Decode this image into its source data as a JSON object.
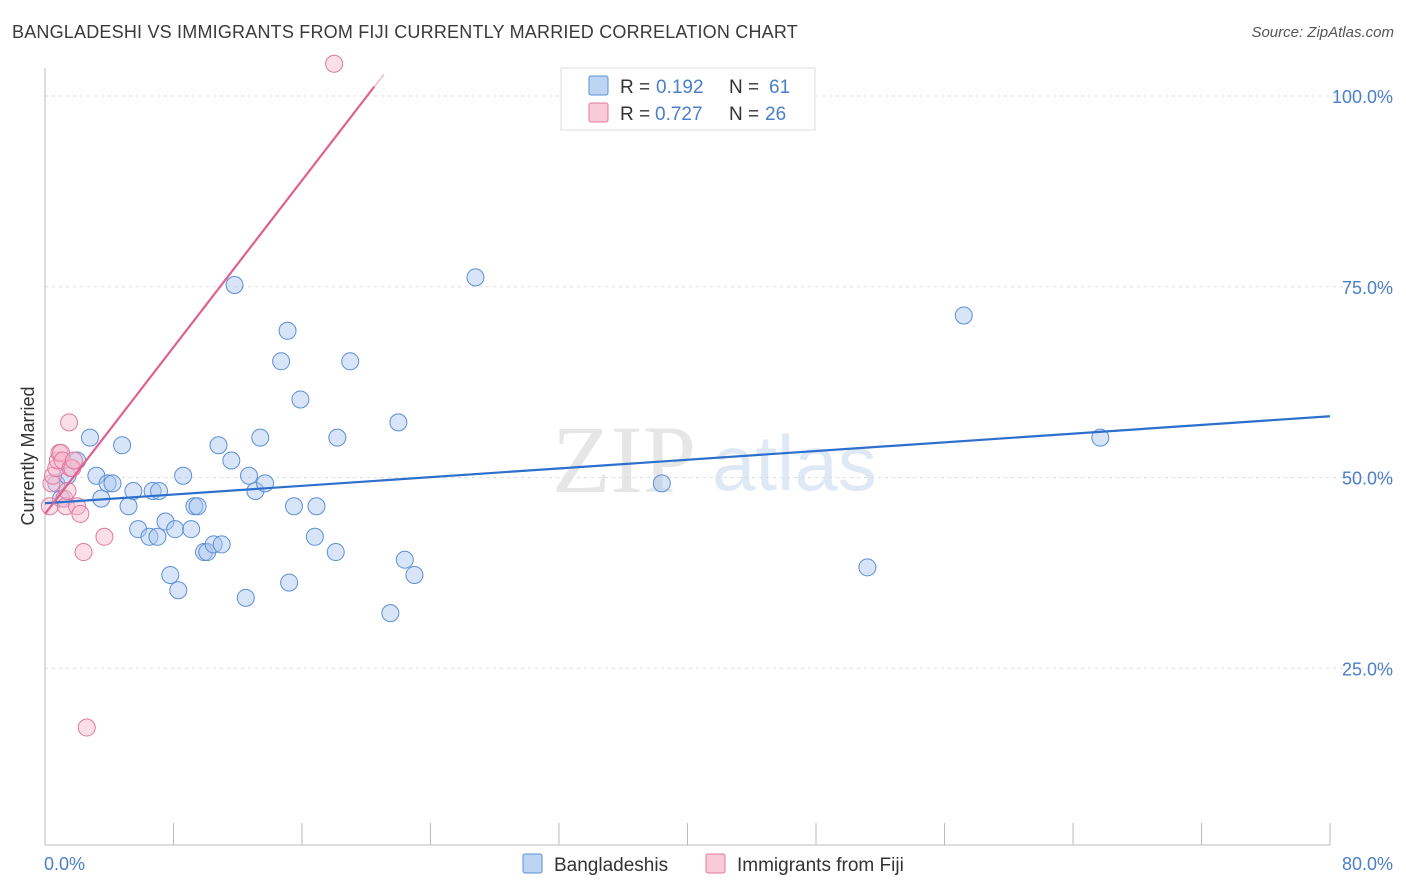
{
  "header": {
    "title": "BANGLADESHI VS IMMIGRANTS FROM FIJI CURRENTLY MARRIED CORRELATION CHART",
    "source": "Source: ZipAtlas.com"
  },
  "watermark": {
    "zip": "ZIP",
    "atlas": "atlas"
  },
  "colors": {
    "blue_fill": "#a8c6ef",
    "blue_stroke": "#5b8fd6",
    "blue_line": "#2d6fcc",
    "pink_fill": "#f7b8cb",
    "pink_stroke": "#e07aa0",
    "pink_line": "#e0608f",
    "label": "#4a7fc9",
    "grid": "#dddddd"
  },
  "legend": {
    "rows": [
      {
        "r_label": "R =",
        "r_value": "0.192",
        "n_label": "N =",
        "n_value": "61"
      },
      {
        "r_label": "R =",
        "r_value": "0.727",
        "n_label": "N =",
        "n_value": "26"
      }
    ]
  },
  "bottom_legend": {
    "items": [
      "Bangladeshis",
      "Immigrants from Fiji"
    ]
  },
  "chart_data": {
    "type": "scatter",
    "title": "BANGLADESHI VS IMMIGRANTS FROM FIJI CURRENTLY MARRIED CORRELATION CHART",
    "xlabel": "",
    "ylabel": "Currently Married",
    "xlim": [
      0,
      80
    ],
    "ylim": [
      0,
      100
    ],
    "x_tick_labels": [
      "0.0%",
      "80.0%"
    ],
    "y_tick_labels": [
      "100.0%",
      "75.0%",
      "50.0%",
      "25.0%"
    ],
    "y_ticks": [
      100,
      75,
      50,
      25
    ],
    "grid": true,
    "series": [
      {
        "name": "Bangladeshis",
        "r": 0.192,
        "n": 61,
        "trend": {
          "x": [
            0,
            80
          ],
          "y": [
            44.4,
            55.8
          ]
        },
        "points": [
          [
            0.7,
            47
          ],
          [
            1.0,
            45
          ],
          [
            1.4,
            48
          ],
          [
            2.0,
            50
          ],
          [
            2.8,
            53
          ],
          [
            3.2,
            48
          ],
          [
            3.5,
            45
          ],
          [
            3.9,
            47
          ],
          [
            4.2,
            47
          ],
          [
            4.8,
            52
          ],
          [
            5.2,
            44
          ],
          [
            5.5,
            46
          ],
          [
            5.8,
            41
          ],
          [
            6.5,
            40
          ],
          [
            6.7,
            46
          ],
          [
            7.0,
            40
          ],
          [
            7.1,
            46
          ],
          [
            7.5,
            42
          ],
          [
            7.8,
            35
          ],
          [
            8.1,
            41
          ],
          [
            8.3,
            33
          ],
          [
            8.6,
            48
          ],
          [
            9.1,
            41
          ],
          [
            9.3,
            44
          ],
          [
            9.5,
            44
          ],
          [
            9.9,
            38
          ],
          [
            10.1,
            38
          ],
          [
            10.5,
            39
          ],
          [
            10.8,
            52
          ],
          [
            11.0,
            39
          ],
          [
            11.6,
            50
          ],
          [
            11.8,
            73
          ],
          [
            12.5,
            32
          ],
          [
            12.7,
            48
          ],
          [
            13.1,
            46
          ],
          [
            13.4,
            53
          ],
          [
            13.7,
            47
          ],
          [
            14.7,
            63
          ],
          [
            15.1,
            67
          ],
          [
            15.2,
            34
          ],
          [
            15.5,
            44
          ],
          [
            15.9,
            58
          ],
          [
            16.8,
            40
          ],
          [
            16.9,
            44
          ],
          [
            18.1,
            38
          ],
          [
            18.2,
            53
          ],
          [
            19.0,
            63
          ],
          [
            21.5,
            30
          ],
          [
            22.0,
            55
          ],
          [
            22.4,
            37
          ],
          [
            23.0,
            35
          ],
          [
            26.8,
            74
          ],
          [
            38.4,
            47
          ],
          [
            51.2,
            36
          ],
          [
            57.2,
            69
          ],
          [
            65.7,
            53
          ]
        ]
      },
      {
        "name": "Immigrants from Fiji",
        "r": 0.727,
        "n": 26,
        "trend": {
          "x": [
            0,
            20.5
          ],
          "y": [
            43,
            99
          ]
        },
        "points": [
          [
            0.3,
            44
          ],
          [
            0.4,
            47
          ],
          [
            0.5,
            48
          ],
          [
            0.7,
            49
          ],
          [
            0.8,
            50
          ],
          [
            0.9,
            51
          ],
          [
            1.0,
            51
          ],
          [
            1.1,
            50
          ],
          [
            1.2,
            45
          ],
          [
            1.3,
            44
          ],
          [
            1.4,
            46
          ],
          [
            1.5,
            55
          ],
          [
            1.6,
            49
          ],
          [
            1.7,
            49
          ],
          [
            1.8,
            50
          ],
          [
            2.0,
            44
          ],
          [
            2.2,
            43
          ],
          [
            2.4,
            38
          ],
          [
            2.6,
            15
          ],
          [
            3.7,
            40
          ],
          [
            18.0,
            102
          ]
        ]
      }
    ]
  }
}
